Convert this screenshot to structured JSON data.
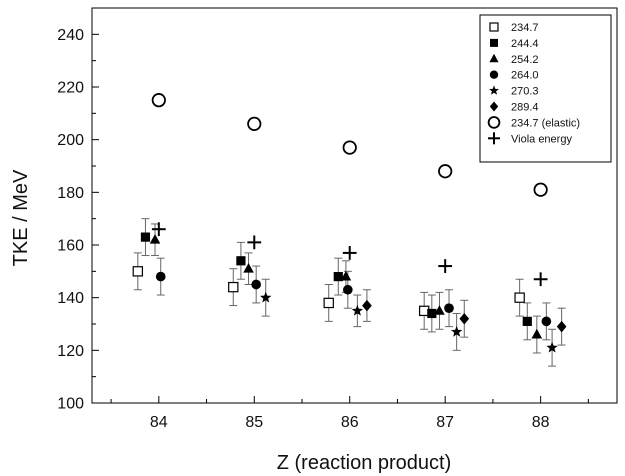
{
  "chart_data": {
    "type": "scatter",
    "title": "",
    "xlabel": "Z (reaction product)",
    "ylabel": "TKE / MeV",
    "xlim": [
      83.3,
      88.8
    ],
    "ylim": [
      100,
      250
    ],
    "x_ticks": [
      84,
      85,
      86,
      87,
      88
    ],
    "y_ticks": [
      100,
      120,
      140,
      160,
      180,
      200,
      220,
      240
    ],
    "grid": false,
    "legend_position": "top-right",
    "series": [
      {
        "name": "234.7",
        "marker": "open-square",
        "error_bars": true,
        "x": [
          83.78,
          84.78,
          85.78,
          86.78,
          87.78
        ],
        "y": [
          150,
          144,
          138,
          135,
          140
        ],
        "err": [
          7,
          7,
          7,
          7,
          7
        ]
      },
      {
        "name": "244.4",
        "marker": "filled-square",
        "error_bars": true,
        "x": [
          83.86,
          84.86,
          85.88,
          86.86,
          87.86
        ],
        "y": [
          163,
          154,
          148,
          134,
          131
        ],
        "err": [
          7,
          7,
          7,
          7,
          7
        ]
      },
      {
        "name": "254.2",
        "marker": "filled-triangle",
        "error_bars": true,
        "x": [
          83.96,
          84.94,
          85.96,
          86.94,
          87.96
        ],
        "y": [
          162,
          151,
          148,
          135,
          126
        ],
        "err": [
          6,
          6,
          6,
          7,
          7
        ]
      },
      {
        "name": "264.0",
        "marker": "filled-circle",
        "error_bars": true,
        "x": [
          84.02,
          85.02,
          85.98,
          87.04,
          88.06
        ],
        "y": [
          148,
          145,
          143,
          136,
          131
        ],
        "err": [
          7,
          7,
          7,
          7,
          7
        ]
      },
      {
        "name": "270.3",
        "marker": "star",
        "error_bars": true,
        "x": [
          null,
          85.12,
          86.08,
          87.12,
          88.12
        ],
        "y": [
          null,
          140,
          135,
          127,
          121
        ],
        "err": [
          null,
          7,
          6,
          7,
          7
        ]
      },
      {
        "name": "289.4",
        "marker": "filled-diamond",
        "error_bars": true,
        "x": [
          null,
          null,
          86.18,
          87.2,
          88.22
        ],
        "y": [
          null,
          null,
          137,
          132,
          129
        ],
        "err": [
          null,
          null,
          6,
          7,
          7
        ]
      },
      {
        "name": "234.7 (elastic)",
        "marker": "open-circle",
        "error_bars": false,
        "x": [
          84,
          85,
          86,
          87,
          88
        ],
        "y": [
          215,
          206,
          197,
          188,
          181
        ]
      },
      {
        "name": "Viola energy",
        "marker": "plus",
        "error_bars": false,
        "x": [
          84,
          85,
          86,
          87,
          88
        ],
        "y": [
          166,
          161,
          157,
          152,
          147
        ]
      }
    ]
  },
  "colors": {
    "axis": "#000000",
    "marker": "#000000",
    "error_bar": "#666666",
    "background": "#ffffff"
  }
}
